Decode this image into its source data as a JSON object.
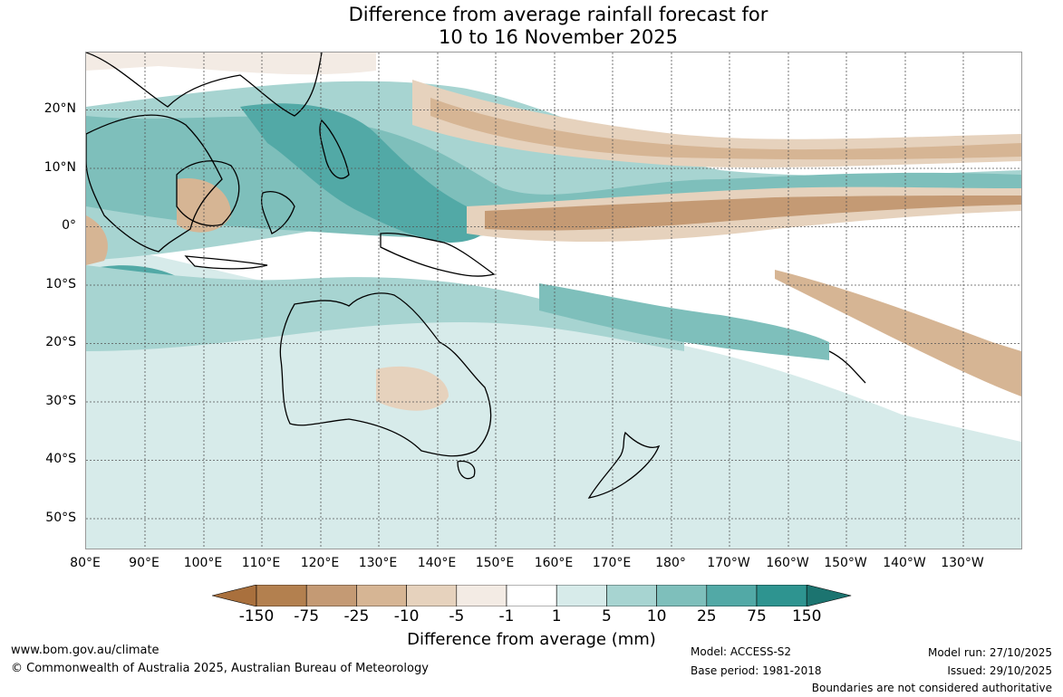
{
  "title_line1": "Difference from average rainfall forecast for",
  "title_line2": "10 to 16 November 2025",
  "lat_labels": [
    "20°N",
    "10°N",
    "0°",
    "10°S",
    "20°S",
    "30°S",
    "40°S",
    "50°S"
  ],
  "lon_labels": [
    "80°E",
    "90°E",
    "100°E",
    "110°E",
    "120°E",
    "130°E",
    "140°E",
    "150°E",
    "160°E",
    "170°E",
    "180°",
    "170°W",
    "160°W",
    "150°W",
    "140°W",
    "130°W"
  ],
  "legend": {
    "ticks": [
      "-150",
      "-75",
      "-25",
      "-10",
      "-5",
      "-1",
      "1",
      "5",
      "10",
      "25",
      "75",
      "150"
    ],
    "colors": [
      "#a9703d",
      "#b3804f",
      "#c49a74",
      "#d6b594",
      "#e6d2bd",
      "#f3ebe4",
      "#ffffff",
      "#d7ebea",
      "#a7d4d1",
      "#7ebfbb",
      "#52a9a6",
      "#2e9490",
      "#1c7470"
    ],
    "title": "Difference from average (mm)"
  },
  "footer": {
    "url": "www.bom.gov.au/climate",
    "copyright": "© Commonwealth of Australia 2025, Australian Bureau of Meteorology",
    "model": "Model: ACCESS-S2",
    "base_period": "Base period: 1981-2018",
    "model_run": "Model run: 27/10/2025",
    "issued": "Issued: 29/10/2025",
    "disclaimer": "Boundaries are not considered authoritative"
  }
}
